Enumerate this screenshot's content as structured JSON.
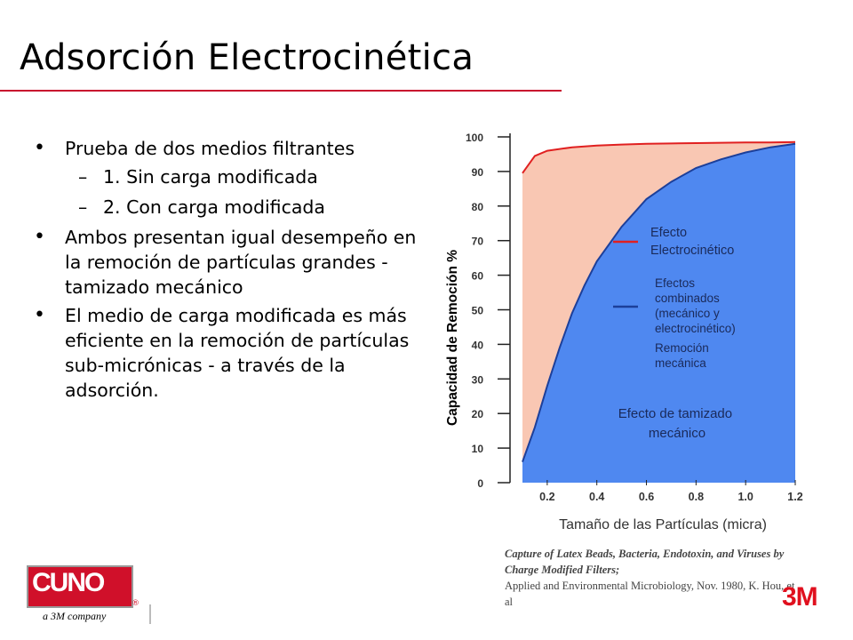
{
  "slide": {
    "title": "Adsorción Electrocinética",
    "bullets": [
      {
        "text": "Prueba de dos medios filtrantes",
        "sub": [
          "1. Sin carga modificada",
          "2. Con carga modificada"
        ]
      },
      {
        "text": "Ambos presentan igual desempeño en la remoción de partículas grandes - tamizado mecánico"
      },
      {
        "text": "El medio de carga modificada es más eficiente en la remoción de partículas sub-micrónicas - a través de la adsorción."
      }
    ],
    "bullet_mark": "•",
    "sub_mark": "–"
  },
  "chart_data": {
    "type": "area",
    "xlabel": "Tamaño de las Partículas (micra)",
    "ylabel": "Capacidad de Remoción %",
    "xlim": [
      0.05,
      1.2
    ],
    "ylim": [
      0,
      100
    ],
    "xticks": [
      "0.2",
      "0.4",
      "0.6",
      "0.8",
      "1.0",
      "1.2"
    ],
    "yticks": [
      "0",
      "10",
      "20",
      "30",
      "40",
      "50",
      "60",
      "70",
      "80",
      "90",
      "100"
    ],
    "grid": false,
    "series": [
      {
        "name": "Efecto Electrocinético",
        "color": "#e02020",
        "fill": "#f9c7b3",
        "x": [
          0.1,
          0.15,
          0.2,
          0.3,
          0.4,
          0.5,
          0.6,
          0.7,
          0.8,
          0.9,
          1.0,
          1.1,
          1.2
        ],
        "y": [
          89.5,
          94.5,
          96.0,
          97.0,
          97.5,
          97.8,
          98.0,
          98.1,
          98.2,
          98.3,
          98.4,
          98.4,
          98.5
        ]
      },
      {
        "name": "Efectos combinados (mecánico y electrocinético)",
        "color": "#1c3f9a",
        "fill": "#4f88f0",
        "x": [
          0.1,
          0.15,
          0.2,
          0.25,
          0.3,
          0.35,
          0.4,
          0.45,
          0.5,
          0.55,
          0.6,
          0.7,
          0.8,
          0.9,
          1.0,
          1.1,
          1.2
        ],
        "y": [
          6,
          16,
          28,
          39,
          49,
          57,
          64,
          69,
          74,
          78,
          82,
          87,
          91,
          93.5,
          95.5,
          97,
          98
        ]
      }
    ],
    "legend": [
      {
        "label": "Efecto Electrocinético",
        "color": "#e02020"
      },
      {
        "label": "Efectos combinados (mecánico y electrocinético)",
        "color": "#1c3f9a"
      }
    ],
    "annotations": [
      "Remoción mecánica",
      "Efecto de tamizado mecánico"
    ]
  },
  "citation": {
    "title": "Capture of Latex Beads, Bacteria, Endotoxin, and Viruses by Charge Modified Filters;",
    "body": "Applied and Environmental Microbiology, Nov. 1980, K. Hou, et al"
  },
  "logos": {
    "cuno_text": "CUNO",
    "cuno_registered": "®",
    "cuno_tagline": "a 3M company",
    "threem_text": "3M",
    "cuno_color": "#d0102a",
    "threem_color": "#e0101e"
  }
}
